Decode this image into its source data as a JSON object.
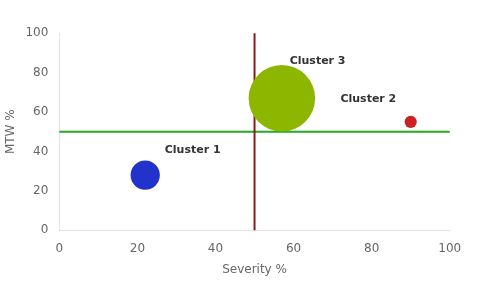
{
  "chart_data": {
    "type": "bubble",
    "xlabel": "Severity %",
    "ylabel": "MTW %",
    "xlim": [
      0,
      100
    ],
    "ylim": [
      0,
      100
    ],
    "xticks": [
      0,
      20,
      40,
      60,
      80,
      100
    ],
    "yticks": [
      0,
      20,
      40,
      60,
      80,
      100
    ],
    "grid": false,
    "series": [
      {
        "color": "#2233cc",
        "x": [
          22
        ],
        "y": [
          28
        ],
        "size": [
          350
        ]
      },
      {
        "color": "#cc2222",
        "x": [
          90
        ],
        "y": [
          55
        ],
        "size": [
          60
        ]
      },
      {
        "color": "#8db600",
        "x": [
          57
        ],
        "y": [
          67
        ],
        "size": [
          1800
        ]
      }
    ],
    "annotations": [
      {
        "text": "Cluster 1",
        "x": 27,
        "y": 38
      },
      {
        "text": "Cluster 2",
        "x": 72,
        "y": 64
      },
      {
        "text": "Cluster 3",
        "x": 59,
        "y": 83
      }
    ],
    "reference_lines": [
      {
        "axis": "y",
        "value": 50,
        "color": "#22aa22"
      },
      {
        "axis": "x",
        "value": 50,
        "color": "#8b1a1a"
      }
    ]
  }
}
